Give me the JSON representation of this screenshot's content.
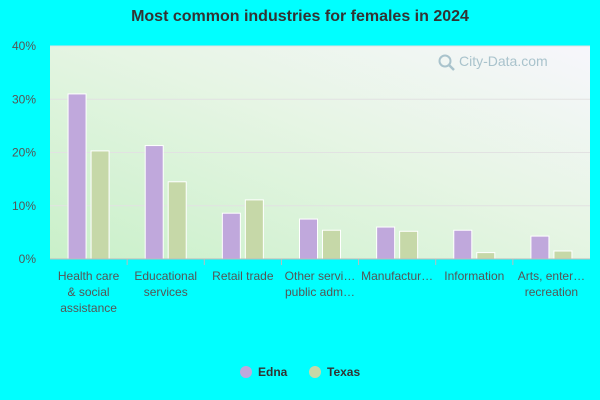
{
  "chart_data": {
    "type": "bar",
    "title": "Most common industries for females in 2024",
    "categories": [
      [
        "Health care",
        "& social",
        "assistance"
      ],
      [
        "Educational",
        "services"
      ],
      [
        "Retail trade"
      ],
      [
        "Other servi…",
        "public adm…"
      ],
      [
        "Manufactur…"
      ],
      [
        "Information"
      ],
      [
        "Arts, enter…",
        "recreation"
      ]
    ],
    "series": [
      {
        "name": "Edna",
        "color": "#c0a8dc",
        "values": [
          31.0,
          21.3,
          8.6,
          7.5,
          6.0,
          5.4,
          4.3
        ]
      },
      {
        "name": "Texas",
        "color": "#c6d8a8",
        "values": [
          20.3,
          14.5,
          11.1,
          5.4,
          5.2,
          1.2,
          1.5
        ]
      }
    ],
    "ylim": [
      0,
      40
    ],
    "yticks": [
      0,
      10,
      20,
      30,
      40
    ],
    "ytick_labels": [
      "0%",
      "10%",
      "20%",
      "30%",
      "40%"
    ],
    "grid": true,
    "legend": "bottom-center"
  },
  "watermark": {
    "text": "City-Data.com",
    "icon": "magnifier-icon"
  }
}
